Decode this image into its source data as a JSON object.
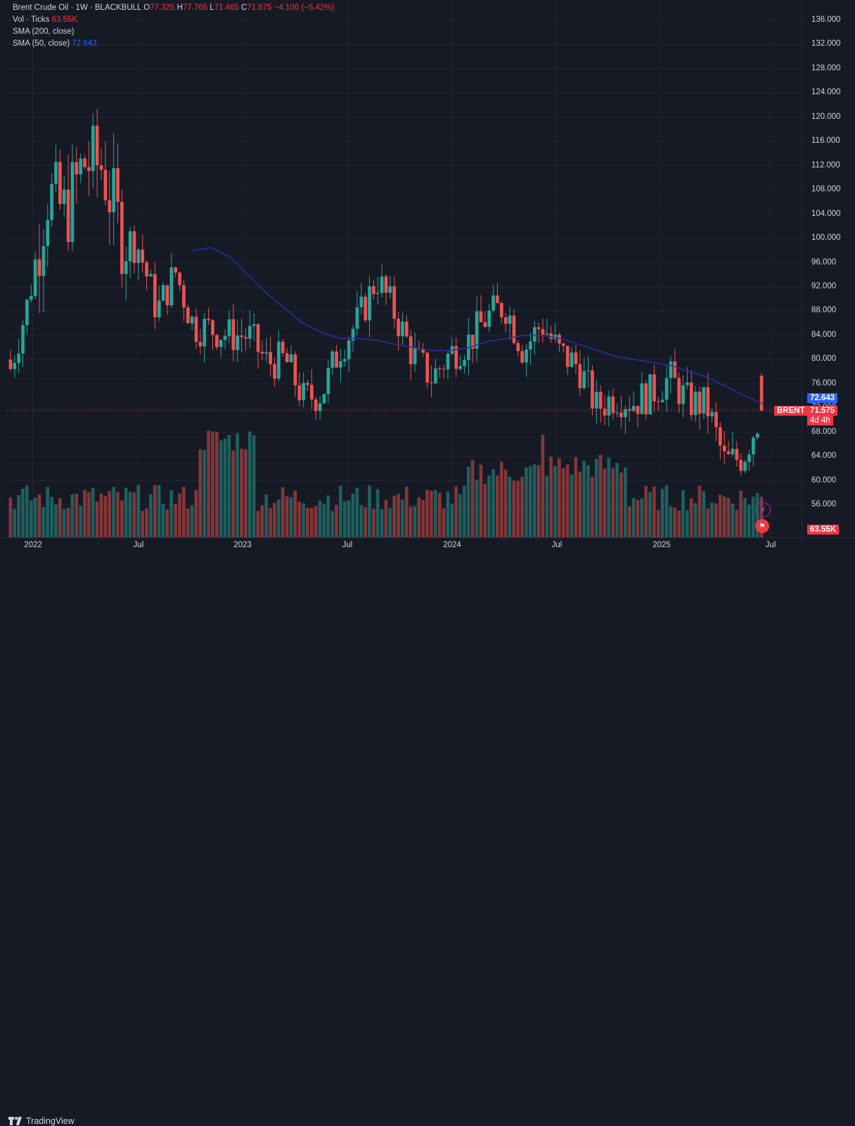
{
  "legend": {
    "title": "Brent Crude Oil · 1W · BLACKBULL",
    "o_label": "O",
    "o_value": "77.325",
    "h_label": "H",
    "h_value": "77.765",
    "l_label": "L",
    "l_value": "71.465",
    "c_label": "C",
    "c_value": "71.575",
    "change": "−4.100 (−5.42%)",
    "vol_label": "Vol · Ticks",
    "vol_value": "63.55K",
    "sma200_label": "SMA (200, close)",
    "sma50_label": "SMA (50, close)",
    "sma50_value": "72.643"
  },
  "price_scale": {
    "ticks": [
      "136.000",
      "132.000",
      "128.000",
      "124.000",
      "120.000",
      "116.000",
      "112.000",
      "108.000",
      "104.000",
      "100.000",
      "96.000",
      "92.000",
      "88.000",
      "84.000",
      "80.000",
      "76.000",
      "72.000",
      "68.000",
      "64.000",
      "60.000",
      "56.000"
    ],
    "sma_tag": "72.643",
    "symbol_tag": "BRENT",
    "price_tag": "71.575",
    "countdown": "4d 4h",
    "volume_tag": "63.55K"
  },
  "time_axis": {
    "labels": [
      "2022",
      "Jul",
      "2023",
      "Jul",
      "2024",
      "Jul",
      "2025",
      "Jul"
    ]
  },
  "footer": {
    "brand": "TradingView"
  },
  "colors": {
    "up": "#26a69a",
    "down": "#ef5350",
    "sma": "#2f2f9e",
    "bg": "#161a25",
    "grid": "#232632"
  },
  "chart_data": {
    "type": "candlestick",
    "title": "Brent Crude Oil · 1W · BLACKBULL",
    "ylim": [
      54,
      138
    ],
    "x": [
      "2022-01",
      "2022-02",
      "2022-03",
      "2022-04",
      "2022-05",
      "2022-06",
      "2022-07",
      "2022-08",
      "2022-09",
      "2022-10",
      "2022-11",
      "2022-12",
      "2023-01",
      "2023-02",
      "2023-03",
      "2023-04",
      "2023-05",
      "2023-06",
      "2023-07",
      "2023-08",
      "2023-09",
      "2023-10",
      "2023-11",
      "2023-12",
      "2024-01",
      "2024-02",
      "2024-03",
      "2024-04",
      "2024-05",
      "2024-06",
      "2024-07",
      "2024-08",
      "2024-09",
      "2024-10",
      "2024-11",
      "2024-12",
      "2025-01",
      "2025-02",
      "2025-03",
      "2025-04",
      "2025-05",
      "2025-06"
    ],
    "close": [
      78.5,
      90.0,
      107.5,
      104.0,
      112.5,
      112.0,
      101.0,
      98.5,
      88.0,
      94.5,
      85.5,
      85.0,
      84.0,
      84.0,
      79.5,
      80.0,
      73.5,
      74.5,
      82.0,
      86.5,
      93.5,
      87.5,
      80.5,
      77.0,
      81.0,
      83.0,
      87.0,
      89.0,
      81.5,
      86.0,
      81.0,
      79.0,
      72.0,
      74.0,
      73.0,
      74.5,
      77.0,
      73.0,
      72.5,
      63.0,
      64.0,
      71.575
    ],
    "sma50": [
      null,
      null,
      null,
      null,
      null,
      null,
      null,
      null,
      null,
      null,
      98.0,
      98.5,
      97.0,
      94.0,
      91.0,
      88.5,
      86.0,
      84.5,
      83.5,
      83.5,
      83.2,
      82.5,
      82.0,
      81.5,
      81.5,
      82.0,
      83.0,
      83.5,
      84.0,
      84.0,
      83.5,
      82.5,
      81.5,
      80.5,
      80.0,
      79.5,
      79.0,
      78.0,
      77.0,
      75.5,
      74.0,
      72.643
    ],
    "volume": "shown as bars at bottom, latest 63.55K"
  }
}
